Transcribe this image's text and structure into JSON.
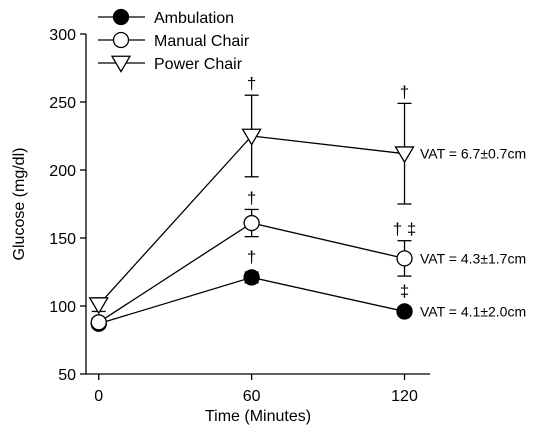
{
  "chart_data": {
    "type": "line",
    "title": "",
    "xlabel": "Time (Minutes)",
    "ylabel": "Glucose (mg/dl)",
    "x": [
      0,
      60,
      120
    ],
    "x_ticks": [
      "0",
      "60",
      "120"
    ],
    "xlim": [
      -5,
      130
    ],
    "ylim": [
      50,
      300
    ],
    "y_ticks": [
      "50",
      "100",
      "150",
      "200",
      "250",
      "300"
    ],
    "grid": false,
    "legend_position": "top-left",
    "series": [
      {
        "name": "Ambulation",
        "marker": "circle-filled",
        "values": [
          87,
          121,
          96
        ],
        "error": [
          3,
          4,
          3
        ],
        "significance": [
          "",
          "†",
          "‡"
        ]
      },
      {
        "name": "Manual Chair",
        "marker": "circle-open",
        "values": [
          88,
          161,
          135
        ],
        "error": [
          3,
          10,
          13
        ],
        "significance": [
          "",
          "†",
          "† ‡"
        ],
        "annotation": "VAT = 4.3±1.7cm"
      },
      {
        "name": "Power Chair",
        "marker": "triangle-down-open",
        "values": [
          101,
          225,
          212
        ],
        "error": [
          5,
          30,
          37
        ],
        "significance": [
          "",
          "†",
          "†"
        ],
        "annotation": "VAT = 6.7±0.7cm"
      }
    ],
    "ambulation_annotation": "VAT = 4.1±2.0cm"
  }
}
